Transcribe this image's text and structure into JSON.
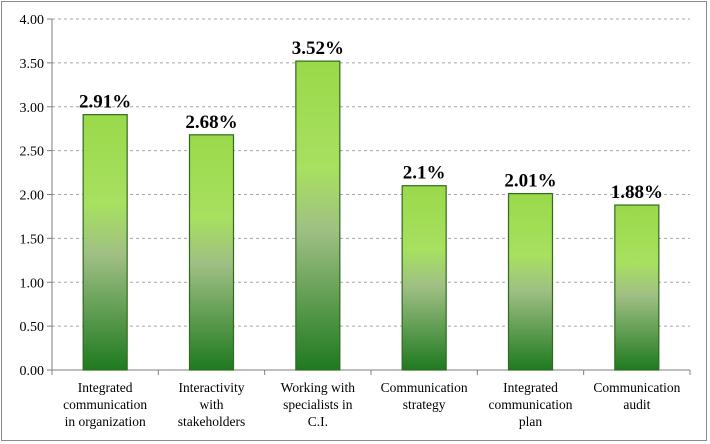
{
  "chart_data": {
    "type": "bar",
    "categories": [
      [
        "Integrated",
        "communication",
        "in organization"
      ],
      [
        "Interactivity",
        "with",
        "stakeholders"
      ],
      [
        "Working with",
        "specialists in",
        "C.I."
      ],
      [
        "Communication",
        "strategy"
      ],
      [
        "Integrated",
        "communication",
        "plan"
      ],
      [
        "Communication",
        "audit"
      ]
    ],
    "values": [
      2.91,
      2.68,
      3.52,
      2.1,
      2.01,
      1.88
    ],
    "data_labels": [
      "2.91%",
      "2.68%",
      "3.52%",
      "2.1%",
      "2.01%",
      "1.88%"
    ],
    "y_ticks": [
      "0.00",
      "0.50",
      "1.00",
      "1.50",
      "2.00",
      "2.50",
      "3.00",
      "3.50",
      "4.00"
    ],
    "ylim": [
      0,
      4
    ],
    "grid": true,
    "legend": "none",
    "colors": {
      "bar_top": "#9ad94a",
      "bar_light": "#a8e060",
      "bar_mid": "#9fbf84",
      "bar_bottom": "#1f7a1f",
      "bar_stroke": "#2e6b1e",
      "grid": "#a6a6a6",
      "axis": "#7f7f7f"
    }
  }
}
